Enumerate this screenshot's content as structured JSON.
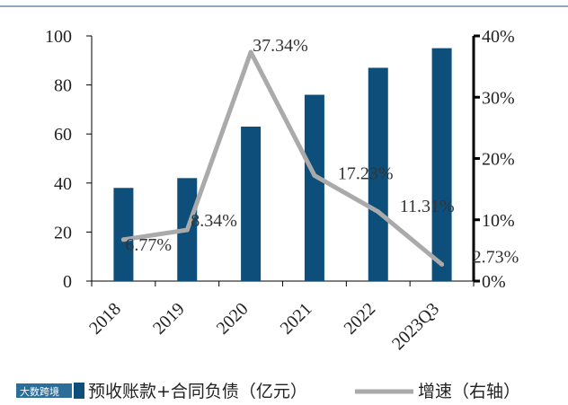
{
  "chart_data": {
    "type": "bar+line",
    "categories": [
      "2018",
      "2019",
      "2020",
      "2021",
      "2022",
      "2023Q3"
    ],
    "series": [
      {
        "name": "预收账款+合同负债（亿元）",
        "type": "bar",
        "axis": "left",
        "color": "#0d4f7a",
        "values": [
          38,
          42,
          63,
          76,
          87,
          95
        ]
      },
      {
        "name": "增速（右轴）",
        "type": "line",
        "axis": "right",
        "color": "#aaaaaa",
        "values": [
          6.77,
          8.34,
          37.34,
          17.23,
          11.31,
          2.73
        ],
        "labels": [
          "6.77%",
          "8.34%",
          "37.34%",
          "17.23%",
          "11.31%",
          "2.73%"
        ]
      }
    ],
    "y_left": {
      "min": 0,
      "max": 100,
      "ticks": [
        "0",
        "20",
        "40",
        "60",
        "80",
        "100"
      ]
    },
    "y_right": {
      "min": 0,
      "max": 40,
      "ticks": [
        "0%",
        "10%",
        "20%",
        "30%",
        "40%"
      ]
    },
    "grid": false,
    "legend_position": "bottom"
  },
  "watermark": "大数跨境"
}
